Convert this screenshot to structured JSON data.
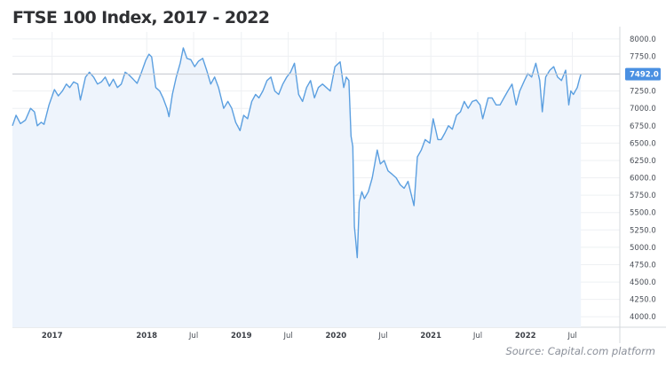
{
  "title": "FTSE 100 Index, 2017 - 2022",
  "source": "Source:  Capital.com platform",
  "colors": {
    "line": "#5b9fe0",
    "fill": "#eef4fc",
    "badge": "#4a90e2",
    "grid": "#eef0f3",
    "refline": "#c9ccd2"
  },
  "chart_data": {
    "type": "area",
    "title": "FTSE 100 Index, 2017 - 2022",
    "xlabel": "",
    "ylabel": "",
    "ylim": [
      3850,
      8100
    ],
    "xlim": [
      "2016-08-01",
      "2022-12-31"
    ],
    "grid": true,
    "y_ticks": [
      "8000.0",
      "7750.0",
      "7500.0",
      "7250.0",
      "7000.0",
      "6750.0",
      "6500.0",
      "6250.0",
      "6000.0",
      "5750.0",
      "5500.0",
      "5250.0",
      "5000.0",
      "4750.0",
      "4500.0",
      "4250.0",
      "4000.0"
    ],
    "x_ticks": [
      {
        "label": "2017",
        "date": "2017-01-01",
        "major": true
      },
      {
        "label": "2018",
        "date": "2018-01-01",
        "major": true
      },
      {
        "label": "Jul",
        "date": "2018-07-01",
        "major": false
      },
      {
        "label": "2019",
        "date": "2019-01-01",
        "major": true
      },
      {
        "label": "Jul",
        "date": "2019-07-01",
        "major": false
      },
      {
        "label": "2020",
        "date": "2020-01-01",
        "major": true
      },
      {
        "label": "Jul",
        "date": "2020-07-01",
        "major": false
      },
      {
        "label": "2021",
        "date": "2021-01-01",
        "major": true
      },
      {
        "label": "Jul",
        "date": "2021-07-01",
        "major": false
      },
      {
        "label": "2022",
        "date": "2022-01-01",
        "major": true
      },
      {
        "label": "Jul",
        "date": "2022-07-01",
        "major": false
      }
    ],
    "last_value_label": "7492.0",
    "last_value": 7492,
    "series": [
      {
        "values": [
          [
            "2016-08-01",
            6750
          ],
          [
            "2016-08-15",
            6900
          ],
          [
            "2016-09-01",
            6780
          ],
          [
            "2016-09-20",
            6830
          ],
          [
            "2016-10-10",
            7000
          ],
          [
            "2016-10-25",
            6950
          ],
          [
            "2016-11-05",
            6750
          ],
          [
            "2016-11-20",
            6800
          ],
          [
            "2016-12-01",
            6770
          ],
          [
            "2016-12-20",
            7050
          ],
          [
            "2017-01-10",
            7270
          ],
          [
            "2017-01-25",
            7180
          ],
          [
            "2017-02-10",
            7250
          ],
          [
            "2017-02-25",
            7350
          ],
          [
            "2017-03-10",
            7300
          ],
          [
            "2017-03-25",
            7380
          ],
          [
            "2017-04-10",
            7350
          ],
          [
            "2017-04-20",
            7120
          ],
          [
            "2017-05-10",
            7450
          ],
          [
            "2017-05-25",
            7520
          ],
          [
            "2017-06-10",
            7450
          ],
          [
            "2017-06-25",
            7350
          ],
          [
            "2017-07-10",
            7380
          ],
          [
            "2017-07-25",
            7450
          ],
          [
            "2017-08-10",
            7320
          ],
          [
            "2017-08-25",
            7420
          ],
          [
            "2017-09-10",
            7300
          ],
          [
            "2017-09-25",
            7350
          ],
          [
            "2017-10-10",
            7520
          ],
          [
            "2017-10-25",
            7480
          ],
          [
            "2017-11-10",
            7420
          ],
          [
            "2017-11-25",
            7360
          ],
          [
            "2017-12-10",
            7500
          ],
          [
            "2017-12-28",
            7690
          ],
          [
            "2018-01-10",
            7780
          ],
          [
            "2018-01-20",
            7740
          ],
          [
            "2018-02-05",
            7300
          ],
          [
            "2018-02-20",
            7250
          ],
          [
            "2018-03-05",
            7150
          ],
          [
            "2018-03-20",
            7000
          ],
          [
            "2018-03-28",
            6880
          ],
          [
            "2018-04-10",
            7200
          ],
          [
            "2018-04-25",
            7450
          ],
          [
            "2018-05-10",
            7650
          ],
          [
            "2018-05-22",
            7870
          ],
          [
            "2018-06-05",
            7720
          ],
          [
            "2018-06-20",
            7700
          ],
          [
            "2018-07-05",
            7600
          ],
          [
            "2018-07-20",
            7680
          ],
          [
            "2018-08-05",
            7720
          ],
          [
            "2018-08-20",
            7550
          ],
          [
            "2018-09-05",
            7350
          ],
          [
            "2018-09-20",
            7450
          ],
          [
            "2018-10-05",
            7300
          ],
          [
            "2018-10-25",
            7000
          ],
          [
            "2018-11-10",
            7100
          ],
          [
            "2018-11-25",
            7000
          ],
          [
            "2018-12-10",
            6800
          ],
          [
            "2018-12-27",
            6680
          ],
          [
            "2019-01-10",
            6900
          ],
          [
            "2019-01-25",
            6850
          ],
          [
            "2019-02-10",
            7100
          ],
          [
            "2019-02-25",
            7200
          ],
          [
            "2019-03-10",
            7150
          ],
          [
            "2019-03-25",
            7250
          ],
          [
            "2019-04-10",
            7400
          ],
          [
            "2019-04-25",
            7450
          ],
          [
            "2019-05-10",
            7250
          ],
          [
            "2019-05-25",
            7200
          ],
          [
            "2019-06-10",
            7350
          ],
          [
            "2019-06-25",
            7450
          ],
          [
            "2019-07-10",
            7520
          ],
          [
            "2019-07-25",
            7650
          ],
          [
            "2019-08-10",
            7200
          ],
          [
            "2019-08-25",
            7100
          ],
          [
            "2019-09-10",
            7300
          ],
          [
            "2019-09-25",
            7400
          ],
          [
            "2019-10-10",
            7150
          ],
          [
            "2019-10-25",
            7300
          ],
          [
            "2019-11-10",
            7350
          ],
          [
            "2019-11-25",
            7300
          ],
          [
            "2019-12-10",
            7250
          ],
          [
            "2019-12-28",
            7600
          ],
          [
            "2020-01-17",
            7670
          ],
          [
            "2020-01-31",
            7300
          ],
          [
            "2020-02-10",
            7450
          ],
          [
            "2020-02-20",
            7400
          ],
          [
            "2020-02-28",
            6600
          ],
          [
            "2020-03-06",
            6450
          ],
          [
            "2020-03-12",
            5300
          ],
          [
            "2020-03-16",
            5150
          ],
          [
            "2020-03-23",
            4850
          ],
          [
            "2020-03-31",
            5650
          ],
          [
            "2020-04-10",
            5800
          ],
          [
            "2020-04-20",
            5700
          ],
          [
            "2020-05-05",
            5800
          ],
          [
            "2020-05-20",
            6000
          ],
          [
            "2020-06-08",
            6400
          ],
          [
            "2020-06-20",
            6200
          ],
          [
            "2020-07-05",
            6250
          ],
          [
            "2020-07-20",
            6100
          ],
          [
            "2020-08-05",
            6050
          ],
          [
            "2020-08-20",
            6000
          ],
          [
            "2020-09-05",
            5900
          ],
          [
            "2020-09-20",
            5850
          ],
          [
            "2020-10-05",
            5950
          ],
          [
            "2020-10-28",
            5600
          ],
          [
            "2020-11-10",
            6300
          ],
          [
            "2020-11-25",
            6400
          ],
          [
            "2020-12-10",
            6550
          ],
          [
            "2020-12-28",
            6500
          ],
          [
            "2021-01-10",
            6850
          ],
          [
            "2021-01-28",
            6550
          ],
          [
            "2021-02-10",
            6550
          ],
          [
            "2021-02-25",
            6650
          ],
          [
            "2021-03-10",
            6750
          ],
          [
            "2021-03-25",
            6700
          ],
          [
            "2021-04-10",
            6900
          ],
          [
            "2021-04-25",
            6950
          ],
          [
            "2021-05-10",
            7100
          ],
          [
            "2021-05-25",
            7000
          ],
          [
            "2021-06-10",
            7100
          ],
          [
            "2021-06-25",
            7120
          ],
          [
            "2021-07-10",
            7050
          ],
          [
            "2021-07-20",
            6850
          ],
          [
            "2021-08-10",
            7150
          ],
          [
            "2021-08-25",
            7150
          ],
          [
            "2021-09-10",
            7050
          ],
          [
            "2021-09-25",
            7050
          ],
          [
            "2021-10-10",
            7150
          ],
          [
            "2021-10-25",
            7250
          ],
          [
            "2021-11-10",
            7350
          ],
          [
            "2021-11-26",
            7050
          ],
          [
            "2021-12-10",
            7250
          ],
          [
            "2021-12-28",
            7400
          ],
          [
            "2022-01-10",
            7500
          ],
          [
            "2022-01-25",
            7450
          ],
          [
            "2022-02-10",
            7650
          ],
          [
            "2022-02-25",
            7400
          ],
          [
            "2022-03-07",
            6950
          ],
          [
            "2022-03-20",
            7450
          ],
          [
            "2022-04-05",
            7550
          ],
          [
            "2022-04-20",
            7600
          ],
          [
            "2022-05-05",
            7450
          ],
          [
            "2022-05-20",
            7400
          ],
          [
            "2022-06-05",
            7550
          ],
          [
            "2022-06-17",
            7050
          ],
          [
            "2022-06-25",
            7250
          ],
          [
            "2022-07-05",
            7200
          ],
          [
            "2022-07-20",
            7300
          ],
          [
            "2022-07-28",
            7420
          ],
          [
            "2022-08-03",
            7492
          ]
        ]
      }
    ]
  }
}
